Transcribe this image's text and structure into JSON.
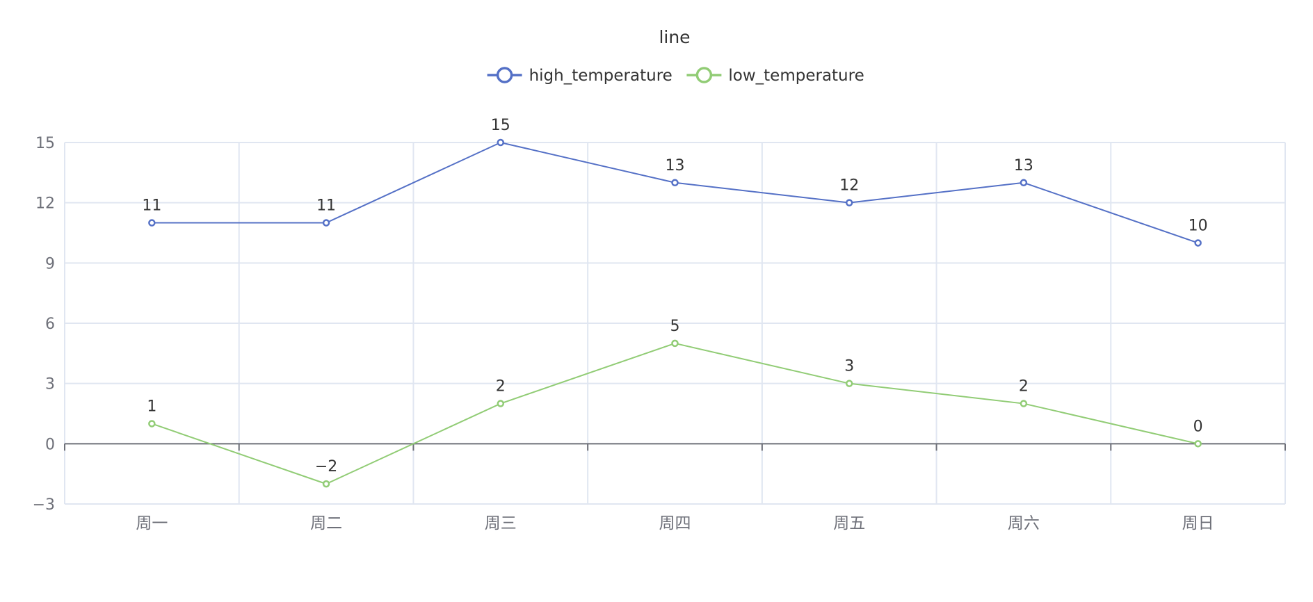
{
  "chart_data": {
    "type": "line",
    "title": "line",
    "xlabel": "",
    "ylabel": "",
    "categories": [
      "周一",
      "周二",
      "周三",
      "周四",
      "周五",
      "周六",
      "周日"
    ],
    "series": [
      {
        "name": "high_temperature",
        "color": "#5470c6",
        "values": [
          11,
          11,
          15,
          13,
          12,
          13,
          10
        ]
      },
      {
        "name": "low_temperature",
        "color": "#91cc75",
        "values": [
          1,
          -2,
          2,
          5,
          3,
          2,
          0
        ]
      }
    ],
    "ylim": [
      -3,
      15
    ],
    "yticks": [
      -3,
      0,
      3,
      6,
      9,
      12,
      15
    ],
    "grid": true,
    "legend_position": "top-center",
    "data_labels": true
  }
}
